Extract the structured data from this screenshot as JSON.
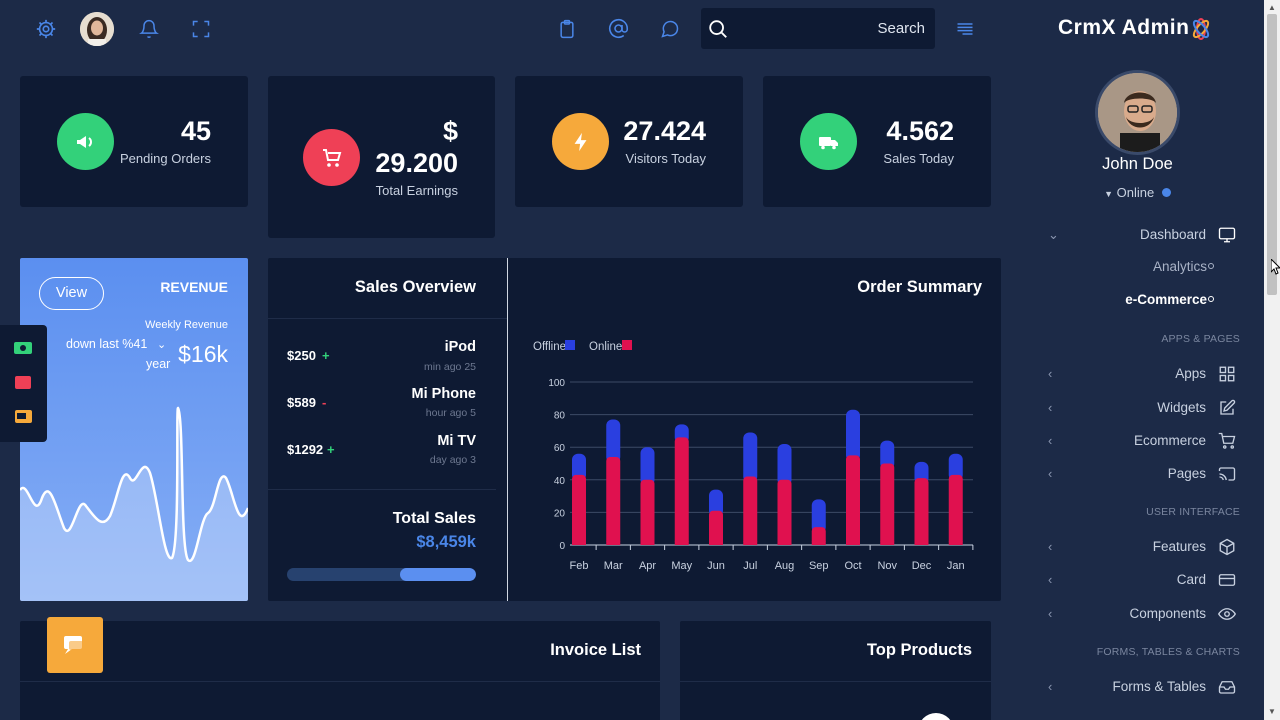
{
  "topbar": {
    "search_label": "Search",
    "icons": [
      "gear-icon",
      "avatar",
      "bell-icon",
      "fullscreen-icon",
      "clipboard-icon",
      "at-icon",
      "chat-icon",
      "search-icon",
      "menu-icon"
    ]
  },
  "brand": {
    "name": "CrmX Admin"
  },
  "stats": [
    {
      "value": "45",
      "label": "Pending Orders",
      "color": "#33d17a"
    },
    {
      "value_line1": "$",
      "value_line2": "29.200",
      "label": "Total Earnings",
      "color": "#ef4056"
    },
    {
      "value": "27.424",
      "label": "Visitors Today",
      "color": "#f6a93b"
    },
    {
      "value": "4.562",
      "label": "Sales Today",
      "color": "#33d17a"
    }
  ],
  "revenue": {
    "view_label": "View",
    "title": "REVENUE",
    "weekly_label": "Weekly Revenue",
    "down_text": "down last %41",
    "year_text": "year",
    "amount": "$16k"
  },
  "sales_overview": {
    "title": "Sales Overview",
    "products": [
      {
        "price": "$250",
        "sign": "+",
        "name": "iPod",
        "time": "min ago 25"
      },
      {
        "price": "$589",
        "sign": "-",
        "name": "Mi Phone",
        "time": "hour ago 5"
      },
      {
        "price": "$1292",
        "sign": "+",
        "name": "Mi TV",
        "time": "day ago 3"
      }
    ],
    "total_label": "Total Sales",
    "total_value": "$8,459k",
    "progress": 0.4
  },
  "chart_data": {
    "type": "bar",
    "title": "Order Summary",
    "categories": [
      "Feb",
      "Mar",
      "Apr",
      "May",
      "Jun",
      "Jul",
      "Aug",
      "Sep",
      "Oct",
      "Nov",
      "Dec",
      "Jan"
    ],
    "series": [
      {
        "name": "Online",
        "color": "#e0114f",
        "values": [
          43,
          54,
          40,
          66,
          21,
          42,
          40,
          11,
          55,
          50,
          41,
          43
        ]
      },
      {
        "name": "Offline",
        "color": "#2a3fe0",
        "values": [
          13,
          23,
          20,
          8,
          13,
          27,
          22,
          17,
          28,
          14,
          10,
          13
        ]
      }
    ],
    "stacked": true,
    "ylim": [
      0,
      100
    ],
    "yticks": [
      "0",
      "20",
      "40",
      "60",
      "80",
      "100"
    ],
    "grid": true,
    "legend_placement": "top-left"
  },
  "bottom": {
    "invoice_title": "Invoice List",
    "top_products_title": "Top Products"
  },
  "user": {
    "name": "John Doe",
    "status": "Online"
  },
  "sidebar": {
    "dashboard": {
      "label": "Dashboard",
      "sub": [
        "Analytics",
        "e-Commerce"
      ]
    },
    "section_apps": "APPS & PAGES",
    "apps": [
      {
        "label": "Apps",
        "icon": "grid-icon"
      },
      {
        "label": "Widgets",
        "icon": "edit-icon"
      },
      {
        "label": "Ecommerce",
        "icon": "cart-icon"
      },
      {
        "label": "Pages",
        "icon": "cast-icon"
      }
    ],
    "section_ui": "USER INTERFACE",
    "ui": [
      {
        "label": "Features",
        "icon": "box-icon"
      },
      {
        "label": "Card",
        "icon": "card-icon"
      },
      {
        "label": "Components",
        "icon": "eye-icon"
      }
    ],
    "section_forms": "FORMS, TABLES & CHARTS",
    "forms": [
      {
        "label": "Forms & Tables",
        "icon": "inbox-icon"
      }
    ]
  },
  "colors": {
    "bg": "#1c2a47",
    "card": "#0e1a33",
    "accent": "#4a86e8"
  }
}
